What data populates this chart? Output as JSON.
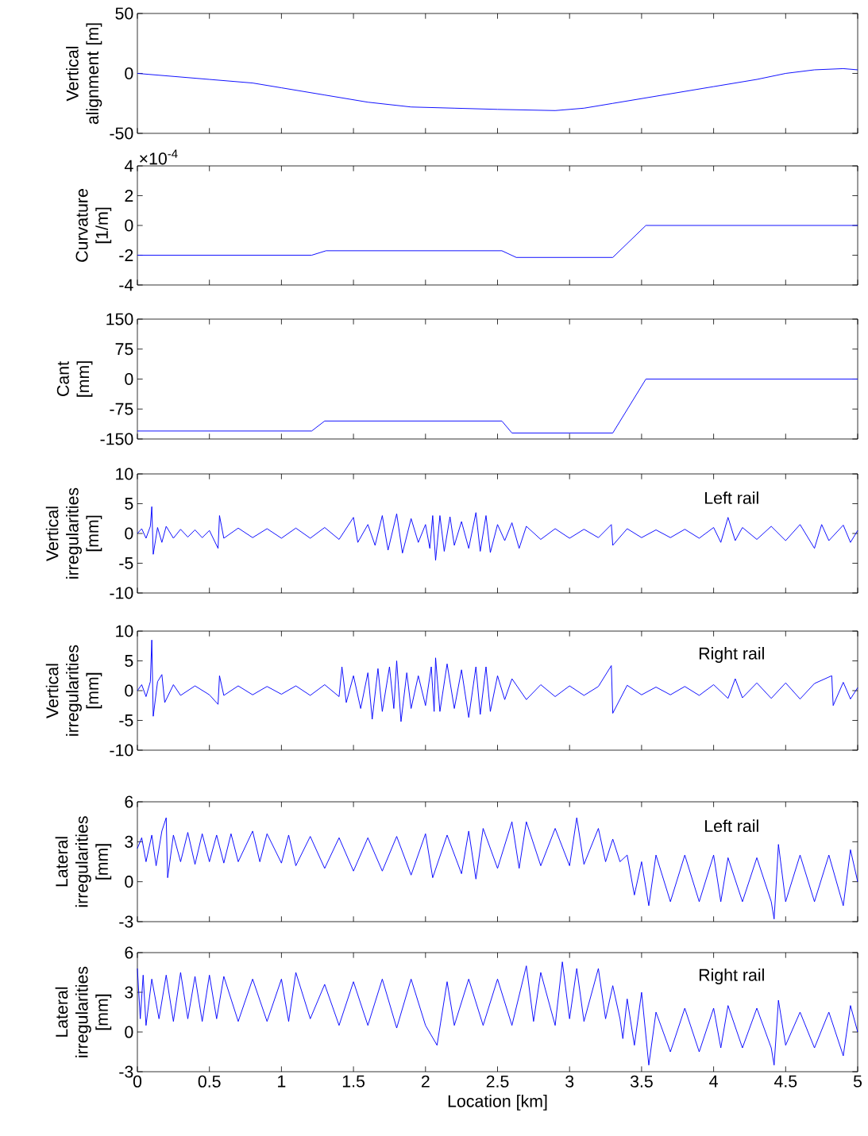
{
  "chart_data": [
    {
      "type": "line",
      "ylabel": "Vertical alignment [m]",
      "color": "#0000ff",
      "xlim": [
        0,
        5
      ],
      "xticks": [
        0,
        0.5,
        1,
        1.5,
        2,
        2.5,
        3,
        3.5,
        4,
        4.5,
        5
      ],
      "ylim": [
        -50,
        50
      ],
      "yticks": [
        -50,
        0,
        50
      ],
      "tick_labels": "y",
      "x": [
        0,
        0.5,
        0.8,
        1,
        1.3,
        1.6,
        1.9,
        2.2,
        2.5,
        2.9,
        3.1,
        3.3,
        3.6,
        4,
        4.3,
        4.5,
        4.7,
        4.9,
        5
      ],
      "values": [
        0,
        -5,
        -8,
        -12,
        -18,
        -24,
        -28,
        -29,
        -30,
        -31,
        -29,
        -25,
        -19,
        -11,
        -5,
        0,
        3,
        4,
        3
      ]
    },
    {
      "type": "line",
      "ylabel": "Curvature [1/m]",
      "annotations": [
        "×10$^{-4}$"
      ],
      "color": "#0000ff",
      "xlim": [
        0,
        5
      ],
      "xticks": [
        0,
        0.5,
        1,
        1.5,
        2,
        2.5,
        3,
        3.5,
        4,
        4.5,
        5
      ],
      "ylim": [
        -4,
        4
      ],
      "yticks": [
        -4,
        -2,
        0,
        2,
        4
      ],
      "tick_labels": "y",
      "x": [
        0,
        1.21,
        1.31,
        2.53,
        2.63,
        3.3,
        3.53,
        5
      ],
      "values": [
        -2,
        -2,
        -1.7,
        -1.7,
        -2.15,
        -2.15,
        0,
        0
      ]
    },
    {
      "type": "line",
      "ylabel": "Cant [mm]",
      "color": "#0000ff",
      "xlim": [
        0,
        5
      ],
      "xticks": [
        0,
        0.5,
        1,
        1.5,
        2,
        2.5,
        3,
        3.5,
        4,
        4.5,
        5
      ],
      "ylim": [
        -150,
        150
      ],
      "yticks": [
        -150,
        -75,
        0,
        75,
        150
      ],
      "tick_labels": "y",
      "x": [
        0,
        1.21,
        1.3,
        2.53,
        2.6,
        3.3,
        3.53,
        5
      ],
      "values": [
        -130,
        -130,
        -105,
        -105,
        -135,
        -135,
        0,
        0
      ]
    },
    {
      "type": "line",
      "ylabel": "Vertical irregularities [mm]",
      "annotations": [
        "Left rail"
      ],
      "color": "#0000ff",
      "xlim": [
        0,
        5
      ],
      "xticks": [
        0,
        0.5,
        1,
        1.5,
        2,
        2.5,
        3,
        3.5,
        4,
        4.5,
        5
      ],
      "ylim": [
        -10,
        10
      ],
      "yticks": [
        -10,
        -5,
        0,
        5,
        10
      ],
      "tick_labels": "y",
      "x": [
        0,
        0.03,
        0.06,
        0.09,
        0.1,
        0.11,
        0.14,
        0.17,
        0.2,
        0.25,
        0.3,
        0.35,
        0.4,
        0.45,
        0.5,
        0.56,
        0.57,
        0.6,
        0.7,
        0.8,
        0.9,
        1.0,
        1.1,
        1.2,
        1.3,
        1.4,
        1.5,
        1.53,
        1.6,
        1.65,
        1.7,
        1.74,
        1.8,
        1.84,
        1.9,
        1.95,
        2.0,
        2.03,
        2.05,
        2.07,
        2.1,
        2.13,
        2.17,
        2.2,
        2.25,
        2.3,
        2.35,
        2.38,
        2.42,
        2.45,
        2.5,
        2.55,
        2.6,
        2.65,
        2.7,
        2.8,
        2.9,
        3.0,
        3.1,
        3.2,
        3.29,
        3.3,
        3.4,
        3.5,
        3.6,
        3.7,
        3.8,
        3.9,
        4.0,
        4.05,
        4.1,
        4.15,
        4.2,
        4.3,
        4.4,
        4.5,
        4.6,
        4.7,
        4.75,
        4.8,
        4.9,
        4.95,
        5
      ],
      "values": [
        0,
        0.8,
        -0.8,
        1.2,
        4.5,
        -3.5,
        1,
        -1.5,
        1.2,
        -0.8,
        0.7,
        -0.6,
        0.6,
        -0.7,
        0.5,
        -2.5,
        3,
        -0.8,
        0.9,
        -0.7,
        0.8,
        -0.8,
        0.9,
        -0.8,
        1,
        -1,
        2.7,
        -1.5,
        1.5,
        -2,
        3,
        -2.8,
        3.3,
        -3.3,
        2.5,
        -1.5,
        1.5,
        -2.5,
        3,
        -4.5,
        3,
        -3,
        2.8,
        -2,
        2,
        -2.5,
        3.5,
        -3,
        3,
        -3.2,
        1.5,
        -1.2,
        1.8,
        -2.5,
        1.2,
        -1,
        0.8,
        -0.8,
        0.7,
        -0.7,
        1.5,
        -2,
        0.8,
        -0.7,
        0.6,
        -0.7,
        0.7,
        -0.8,
        1,
        -1.5,
        2.7,
        -1.2,
        1,
        -1,
        1.2,
        -1.2,
        1.5,
        -2.5,
        1.5,
        -1.2,
        1.4,
        -1.5,
        0.5
      ]
    },
    {
      "type": "line",
      "ylabel": "Vertical irregularities [mm]",
      "annotations": [
        "Right rail"
      ],
      "color": "#0000ff",
      "xlim": [
        0,
        5
      ],
      "xticks": [
        0,
        0.5,
        1,
        1.5,
        2,
        2.5,
        3,
        3.5,
        4,
        4.5,
        5
      ],
      "ylim": [
        -10,
        10
      ],
      "yticks": [
        -10,
        -5,
        0,
        5,
        10
      ],
      "tick_labels": "y",
      "x": [
        0,
        0.03,
        0.06,
        0.09,
        0.1,
        0.11,
        0.14,
        0.17,
        0.19,
        0.25,
        0.3,
        0.4,
        0.5,
        0.56,
        0.57,
        0.6,
        0.7,
        0.8,
        0.9,
        1.0,
        1.1,
        1.2,
        1.3,
        1.4,
        1.42,
        1.45,
        1.5,
        1.55,
        1.6,
        1.63,
        1.67,
        1.7,
        1.75,
        1.78,
        1.8,
        1.83,
        1.87,
        1.9,
        1.95,
        2.0,
        2.04,
        2.06,
        2.07,
        2.1,
        2.15,
        2.2,
        2.25,
        2.3,
        2.35,
        2.38,
        2.42,
        2.45,
        2.5,
        2.55,
        2.6,
        2.7,
        2.8,
        2.9,
        3.0,
        3.1,
        3.2,
        3.29,
        3.3,
        3.4,
        3.5,
        3.6,
        3.7,
        3.8,
        3.9,
        4.0,
        4.1,
        4.15,
        4.2,
        4.3,
        4.4,
        4.5,
        4.6,
        4.7,
        4.82,
        4.83,
        4.9,
        4.95,
        5
      ],
      "values": [
        0,
        1,
        -1,
        1.5,
        8.5,
        -4.3,
        1.5,
        2.7,
        -2,
        1,
        -0.8,
        0.8,
        -0.7,
        -2.3,
        2.5,
        -0.8,
        0.8,
        -0.7,
        0.7,
        -0.6,
        0.8,
        -0.8,
        1,
        -1,
        4,
        -2,
        2.5,
        -3,
        3,
        -4.8,
        3.7,
        -3.5,
        4,
        -3,
        5,
        -5.2,
        3,
        -3,
        2.5,
        -2.5,
        4,
        -3.5,
        5.5,
        -3.5,
        4.5,
        -3,
        3.5,
        -4.5,
        4,
        -4,
        4,
        -3.5,
        2.5,
        -1.5,
        2,
        -1.5,
        1,
        -1,
        0.8,
        -0.8,
        0.7,
        4.2,
        -3.8,
        0.9,
        -0.7,
        0.6,
        -0.7,
        0.7,
        -0.8,
        1,
        -1.3,
        2,
        -1.2,
        1.3,
        -1.3,
        1.3,
        -1.4,
        1.2,
        2.5,
        -2.5,
        1.4,
        -1.4,
        0.5
      ]
    },
    {
      "type": "line",
      "ylabel": "Lateral irregularities [mm]",
      "annotations": [
        "Left rail"
      ],
      "color": "#0000ff",
      "xlim": [
        0,
        5
      ],
      "xticks": [
        0,
        0.5,
        1,
        1.5,
        2,
        2.5,
        3,
        3.5,
        4,
        4.5,
        5
      ],
      "ylim": [
        -3,
        6
      ],
      "yticks": [
        -3,
        0,
        3,
        6
      ],
      "tick_labels": "y",
      "x": [
        0,
        0.03,
        0.06,
        0.1,
        0.13,
        0.17,
        0.2,
        0.21,
        0.25,
        0.3,
        0.35,
        0.4,
        0.45,
        0.5,
        0.55,
        0.6,
        0.65,
        0.7,
        0.8,
        0.85,
        0.9,
        1.0,
        1.05,
        1.1,
        1.2,
        1.3,
        1.4,
        1.5,
        1.6,
        1.7,
        1.8,
        1.9,
        2.0,
        2.05,
        2.15,
        2.25,
        2.3,
        2.35,
        2.4,
        2.5,
        2.6,
        2.65,
        2.7,
        2.8,
        2.9,
        3.0,
        3.05,
        3.1,
        3.2,
        3.25,
        3.3,
        3.35,
        3.4,
        3.45,
        3.5,
        3.55,
        3.6,
        3.7,
        3.8,
        3.9,
        4.0,
        4.05,
        4.1,
        4.2,
        4.3,
        4.4,
        4.42,
        4.45,
        4.5,
        4.6,
        4.7,
        4.8,
        4.9,
        4.95,
        5
      ],
      "values": [
        2.5,
        3.3,
        1.5,
        3.5,
        1.2,
        3.8,
        4.8,
        0.3,
        3.5,
        1.5,
        3.7,
        1.3,
        3.6,
        1.5,
        3.5,
        1.4,
        3.6,
        1.5,
        3.8,
        1.5,
        3.6,
        1.4,
        3.5,
        1.2,
        3.4,
        1.0,
        3.3,
        0.8,
        3.3,
        0.8,
        3.4,
        0.5,
        3.6,
        0.3,
        3.5,
        0.6,
        3.8,
        0.2,
        4,
        1,
        4.5,
        1,
        4.5,
        1.2,
        4,
        1.2,
        4.8,
        1.3,
        4,
        1.5,
        3.2,
        1.5,
        2,
        -1,
        1.5,
        -1.8,
        2,
        -1.5,
        2,
        -1.5,
        2,
        -1.5,
        1.8,
        -1.5,
        1.8,
        -1.5,
        -2.8,
        2.8,
        -1.5,
        2,
        -1.5,
        2,
        -1.8,
        2.4,
        0
      ]
    },
    {
      "type": "line",
      "ylabel": "Lateral irregularities [mm]",
      "xlabel": "Location [km]",
      "annotations": [
        "Right rail"
      ],
      "color": "#0000ff",
      "xlim": [
        0,
        5
      ],
      "xticks": [
        0,
        0.5,
        1,
        1.5,
        2,
        2.5,
        3,
        3.5,
        4,
        4.5,
        5
      ],
      "ylim": [
        -3,
        6
      ],
      "yticks": [
        -3,
        0,
        3,
        6
      ],
      "x": [
        0,
        0.02,
        0.04,
        0.06,
        0.1,
        0.15,
        0.2,
        0.25,
        0.3,
        0.35,
        0.4,
        0.45,
        0.5,
        0.55,
        0.6,
        0.7,
        0.8,
        0.9,
        1.0,
        1.05,
        1.1,
        1.2,
        1.3,
        1.4,
        1.5,
        1.6,
        1.7,
        1.8,
        1.9,
        2.0,
        2.08,
        2.15,
        2.2,
        2.3,
        2.4,
        2.5,
        2.6,
        2.7,
        2.75,
        2.8,
        2.9,
        2.95,
        3.0,
        3.05,
        3.1,
        3.2,
        3.25,
        3.3,
        3.35,
        3.37,
        3.4,
        3.45,
        3.5,
        3.55,
        3.6,
        3.7,
        3.8,
        3.9,
        4.0,
        4.05,
        4.1,
        4.2,
        4.3,
        4.4,
        4.42,
        4.45,
        4.5,
        4.6,
        4.7,
        4.8,
        4.9,
        4.95,
        5
      ],
      "values": [
        4.8,
        1,
        4.3,
        0.5,
        4,
        1,
        4.3,
        0.8,
        4.5,
        1,
        4.2,
        0.8,
        4.3,
        1,
        4.2,
        0.8,
        4,
        0.8,
        4,
        0.8,
        4.5,
        1,
        3.6,
        0.5,
        3.8,
        0.5,
        4,
        0.3,
        4,
        0.5,
        -1,
        3.8,
        0.5,
        4,
        0.5,
        4,
        0.5,
        5,
        0.8,
        4.5,
        0.5,
        5.3,
        1,
        4.8,
        0.8,
        4.8,
        1,
        3.5,
        1,
        -0.5,
        2.5,
        -1,
        3,
        -2.5,
        1.5,
        -1.5,
        1.8,
        -1.5,
        1.8,
        -1.2,
        2,
        -1.2,
        1.8,
        -1.2,
        -2.5,
        2.4,
        -1,
        1.5,
        -1.2,
        1.5,
        -1.8,
        2,
        0
      ]
    }
  ]
}
